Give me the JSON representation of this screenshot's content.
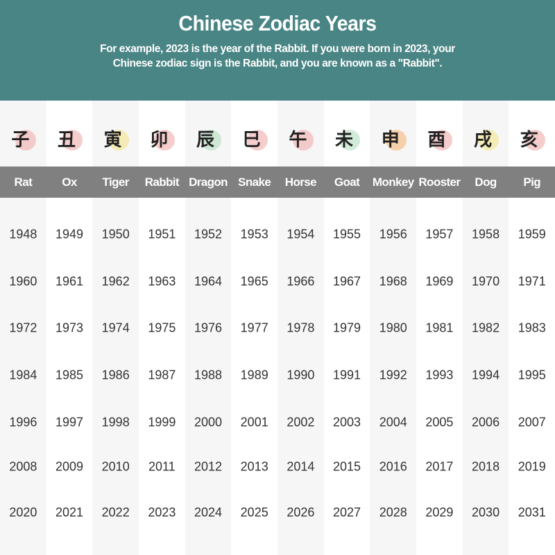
{
  "header": {
    "title": "Chinese Zodiac Years",
    "subtitle_line1": "For example, 2023 is the year of the Rabbit. If you were born in 2023, your",
    "subtitle_line2": "Chinese zodiac sign is the Rabbit, and you are known as a \"Rabbit\"."
  },
  "animals": [
    {
      "name": "Rat",
      "char": "子",
      "color": "#f2b8b8",
      "years": [
        "1948",
        "1960",
        "1972",
        "1984",
        "1996",
        "2008",
        "2020"
      ]
    },
    {
      "name": "Ox",
      "char": "丑",
      "color": "#f2b8b8",
      "years": [
        "1949",
        "1961",
        "1973",
        "1985",
        "1997",
        "2009",
        "2021"
      ]
    },
    {
      "name": "Tiger",
      "char": "寅",
      "color": "#f5e79a",
      "years": [
        "1950",
        "1962",
        "1974",
        "1986",
        "1998",
        "2010",
        "2022"
      ]
    },
    {
      "name": "Rabbit",
      "char": "卯",
      "color": "#f2b8b8",
      "years": [
        "1951",
        "1963",
        "1975",
        "1987",
        "1999",
        "2011",
        "2023"
      ]
    },
    {
      "name": "Dragon",
      "char": "辰",
      "color": "#bfe3c8",
      "years": [
        "1952",
        "1964",
        "1976",
        "1988",
        "2000",
        "2012",
        "2024"
      ]
    },
    {
      "name": "Snake",
      "char": "巳",
      "color": "#f2b8b8",
      "years": [
        "1953",
        "1965",
        "1977",
        "1989",
        "2001",
        "2013",
        "2025"
      ]
    },
    {
      "name": "Horse",
      "char": "午",
      "color": "#f2b8b8",
      "years": [
        "1954",
        "1966",
        "1978",
        "1990",
        "2002",
        "2014",
        "2026"
      ]
    },
    {
      "name": "Goat",
      "char": "未",
      "color": "#bfe3c8",
      "years": [
        "1955",
        "1967",
        "1979",
        "1991",
        "2003",
        "2015",
        "2027"
      ]
    },
    {
      "name": "Monkey",
      "char": "申",
      "color": "#f7c08a",
      "years": [
        "1956",
        "1968",
        "1980",
        "1992",
        "2004",
        "2016",
        "2028"
      ]
    },
    {
      "name": "Rooster",
      "char": "酉",
      "color": "#f2b8b8",
      "years": [
        "1957",
        "1969",
        "1981",
        "1993",
        "2005",
        "2017",
        "2029"
      ]
    },
    {
      "name": "Dog",
      "char": "戌",
      "color": "#f5e79a",
      "years": [
        "1958",
        "1970",
        "1982",
        "1994",
        "2006",
        "2018",
        "2030"
      ]
    },
    {
      "name": "Pig",
      "char": "亥",
      "color": "#f2b8b8",
      "years": [
        "1959",
        "1971",
        "1983",
        "1995",
        "2007",
        "2019",
        "2031"
      ]
    }
  ]
}
